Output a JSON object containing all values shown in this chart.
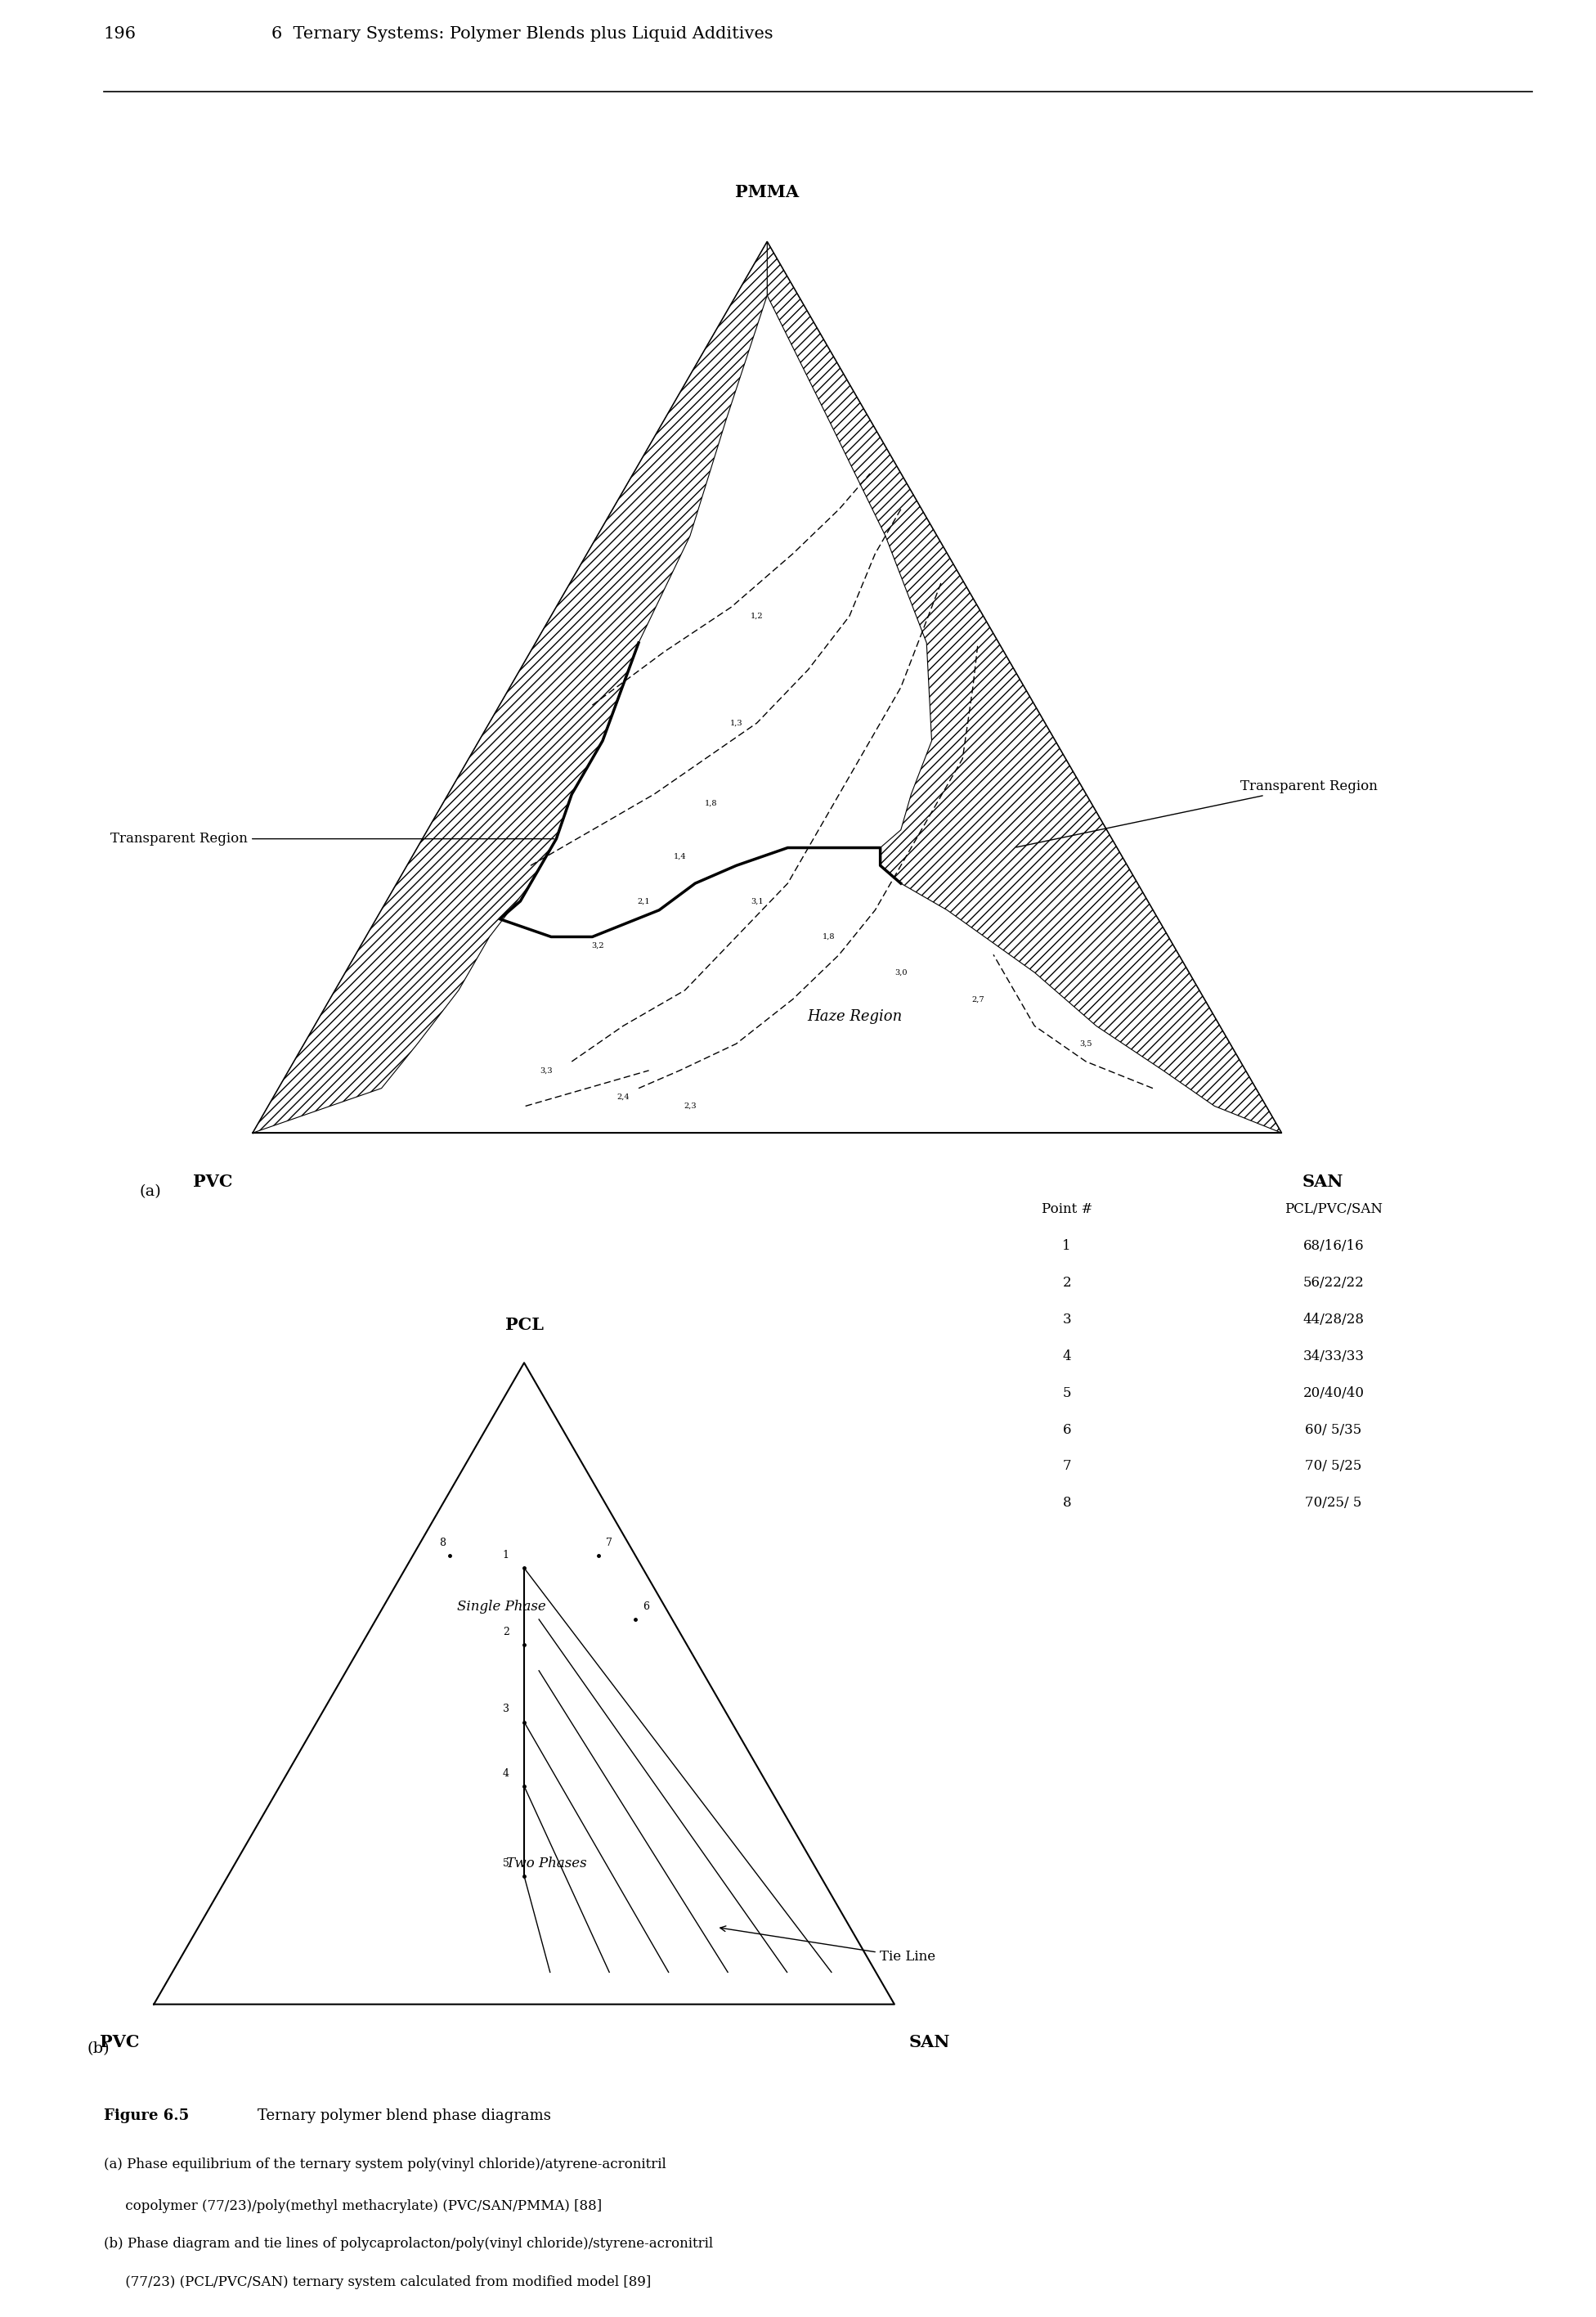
{
  "page_number": "196",
  "chapter_title": "6  Ternary Systems: Polymer Blends plus Liquid Additives",
  "figure_label": "Figure 6.5",
  "caption_line1": "Ternary polymer blend phase diagrams",
  "caption_line2a": "(a) Phase equilibrium of the ternary system poly(vinyl chloride)/atyrene-acronitril",
  "caption_line2b": "     copolymer (77/23)/poly(methyl methacrylate) (PVC/SAN/PMMA) [88]",
  "caption_line3a": "(b) Phase diagram and tie lines of polycaprolacton/poly(vinyl chloride)/styrene-acronitril",
  "caption_line3b": "     (77/23) (PCL/PVC/SAN) ternary system calculated from modified model [89]",
  "diagram_a": {
    "label": "(a)",
    "top_label": "PMMA",
    "left_label": "PVC",
    "right_label": "SAN",
    "transparent_region_right": "Transparent Region",
    "transparent_region_left": "Transparent Region",
    "haze_region": "Haze Region"
  },
  "diagram_b": {
    "label": "(b)",
    "top_label": "PCL",
    "left_label": "PVC",
    "right_label": "SAN",
    "single_phase": "Single Phase",
    "two_phases": "Two Phases",
    "tie_line_label": "Tie Line",
    "table_header": [
      "Point #",
      "PCL/PVC/SAN"
    ],
    "table_data": [
      [
        "1",
        "68/16/16"
      ],
      [
        "2",
        "56/22/22"
      ],
      [
        "3",
        "44/28/28"
      ],
      [
        "4",
        "34/33/33"
      ],
      [
        "5",
        "20/40/40"
      ],
      [
        "6",
        "60/ 5/35"
      ],
      [
        "7",
        "70/ 5/25"
      ],
      [
        "8",
        "70/25/ 5"
      ]
    ]
  },
  "background_color": "#ffffff",
  "line_color": "#000000"
}
